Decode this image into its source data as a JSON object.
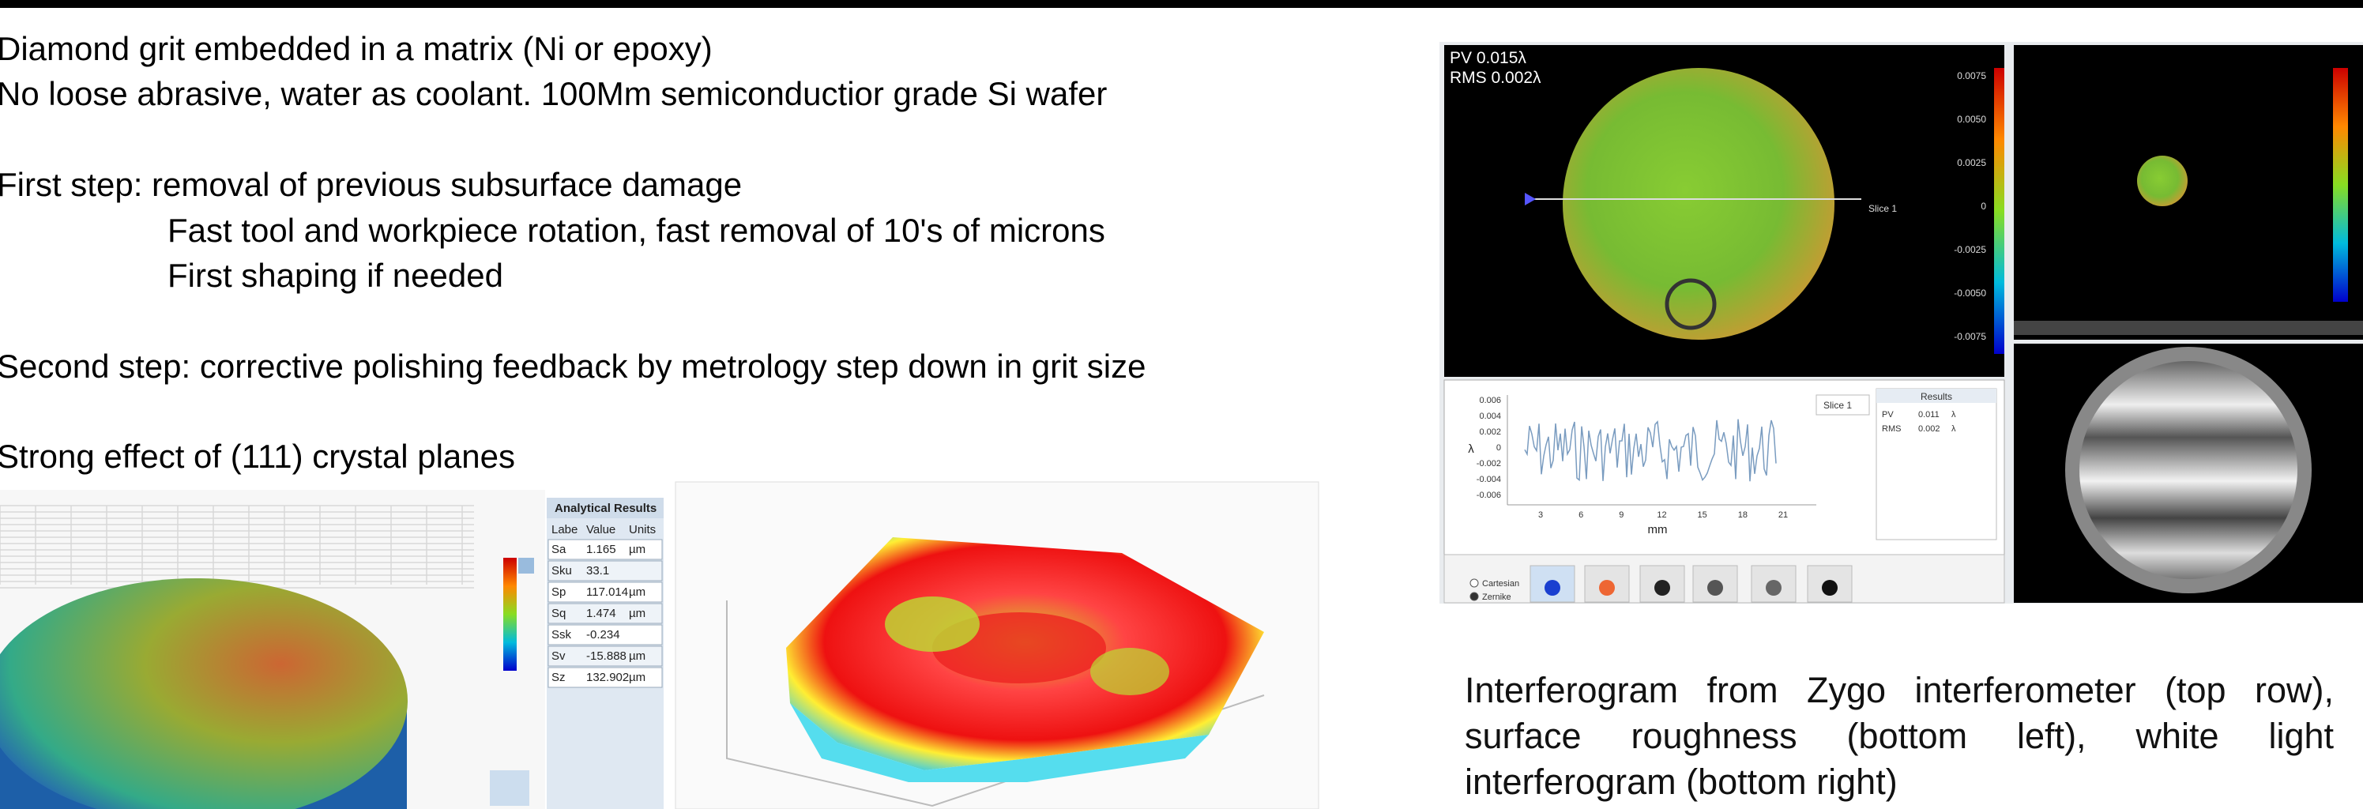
{
  "slide": {
    "lines": [
      "Diamond grit embedded in a matrix (Ni or epoxy)",
      "No loose abrasive, water as coolant. 100Mm semiconductior grade Si wafer",
      "First step: removal of previous subsurface damage",
      "Fast tool and workpiece rotation, fast removal of 10's of microns",
      "First shaping if needed",
      "Second step: corrective polishing feedback by metrology step down in grit size",
      "Strong effect of (111) crystal planes"
    ],
    "caption": "Interferogram from Zygo interferometer (top row), surface roughness (bottom left), white light interferogram (bottom right)"
  },
  "surface_table": {
    "title": "Analytical Results",
    "headers": [
      "Labe",
      "Value",
      "Units"
    ],
    "rows": [
      [
        "Sa",
        "1.165",
        "µm"
      ],
      [
        "Sku",
        "33.1",
        ""
      ],
      [
        "Sp",
        "117.014",
        "µm"
      ],
      [
        "Sq",
        "1.474",
        "µm"
      ],
      [
        "Ssk",
        "-0.234",
        ""
      ],
      [
        "Sv",
        "-15.888",
        "µm"
      ],
      [
        "Sz",
        "132.902",
        "µm"
      ]
    ]
  },
  "interferometer": {
    "pv": "PV 0.015λ",
    "rms": "RMS 0.002λ",
    "slice": "Slice 1",
    "colorbar": [
      "0.0075",
      "0.0050",
      "0.0025",
      "0",
      "-0.0025",
      "-0.0050",
      "-0.0075"
    ],
    "plot": {
      "yticks": [
        "0.006",
        "0.004",
        "0.002",
        "0",
        "-0.002",
        "-0.004",
        "-0.006"
      ],
      "xticks": [
        "3",
        "6",
        "9",
        "12",
        "15",
        "18",
        "21"
      ],
      "xlabel": "mm",
      "ylabel": "λ",
      "legend": "Slice 1"
    },
    "results": {
      "title": "Results",
      "rows": [
        [
          "PV",
          "0.011",
          "λ"
        ],
        [
          "RMS",
          "0.002",
          "λ"
        ]
      ]
    },
    "options": [
      "Cartesian",
      "Zernike"
    ]
  }
}
